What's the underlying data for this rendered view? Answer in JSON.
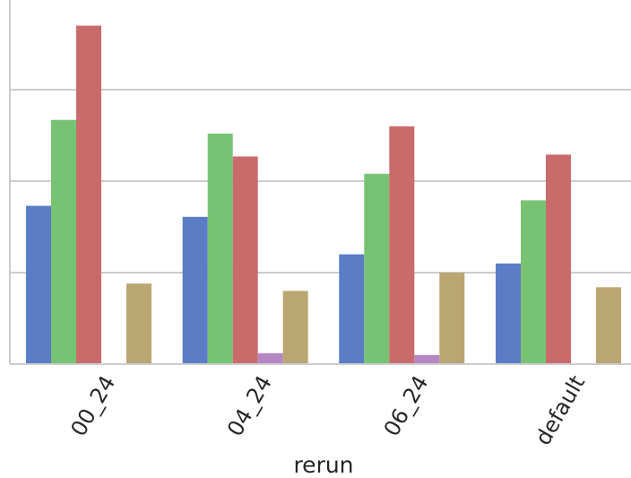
{
  "chart_data": {
    "type": "bar",
    "xlabel": "rerun",
    "ylabel": "",
    "categories": [
      "00_24",
      "04_24",
      "06_24",
      "default"
    ],
    "ylim": [
      0,
      4
    ],
    "grid": "horizontal",
    "series": [
      {
        "color": "#5a7dc5",
        "values": [
          1.73,
          1.61,
          1.2,
          1.1
        ]
      },
      {
        "color": "#78c273",
        "values": [
          2.67,
          2.52,
          2.08,
          1.79
        ]
      },
      {
        "color": "#c96b6b",
        "values": [
          3.7,
          2.27,
          2.6,
          2.29
        ]
      },
      {
        "color": "#b587c4",
        "values": [
          0,
          0.12,
          0.1,
          0
        ]
      },
      {
        "color": "#baa671",
        "values": [
          0.88,
          0.8,
          1.0,
          0.84
        ]
      }
    ]
  }
}
